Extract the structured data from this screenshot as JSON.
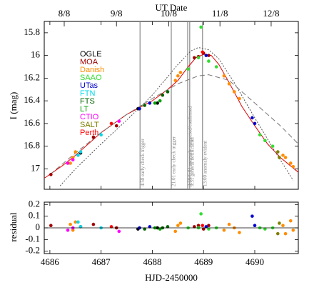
{
  "chart_data": [
    {
      "type": "scatter",
      "ylabel": "I (mag)",
      "x2label": "UT Date",
      "xlim": [
        4685.89,
        4690.85
      ],
      "ylim": [
        15.7,
        17.18
      ],
      "y_inverted": true,
      "xticks": [
        4686,
        4687,
        4688,
        4689,
        4690
      ],
      "yticks": [
        15.8,
        16,
        16.2,
        16.4,
        16.6,
        16.8,
        17
      ],
      "x2ticks": [
        {
          "value": 4686.28,
          "label": "8/8"
        },
        {
          "value": 4687.3,
          "label": "9/8"
        },
        {
          "value": 4688.32,
          "label": "10/8"
        },
        {
          "value": 4689.32,
          "label": "11/8"
        },
        {
          "value": 4690.32,
          "label": "12/8"
        }
      ],
      "vlines": [
        {
          "x": 4687.76,
          "label": "4:58 early check trigger"
        },
        {
          "x": 4688.37,
          "label": "21:01 early check trigger"
        },
        {
          "x": 4688.69,
          "label": "3:59/6:01 anomaly suspected/confirmed"
        },
        {
          "x": 4688.73,
          "label": "9:31 general notification"
        },
        {
          "x": 4688.98,
          "label": "13:00 anomaly evident"
        }
      ],
      "lines": [
        {
          "color": "#e00000",
          "dash": "none",
          "x": [
            4685.9,
            4686.25,
            4686.5,
            4687,
            4687.5,
            4688,
            4688.3,
            4688.5,
            4688.7,
            4688.85,
            4689,
            4689.15,
            4689.3,
            4689.5,
            4689.75,
            4690,
            4690.25,
            4690.5,
            4690.85
          ],
          "values": [
            17.08,
            16.97,
            16.88,
            16.68,
            16.52,
            16.4,
            16.3,
            16.22,
            16.1,
            16.02,
            15.99,
            16.0,
            16.08,
            16.24,
            16.45,
            16.62,
            16.78,
            16.9,
            17.03
          ]
        },
        {
          "color": "#555555",
          "dash": "2 2",
          "x": [
            4686.2,
            4686.5,
            4687,
            4687.5,
            4688,
            4688.5,
            4688.75,
            4688.9,
            4689.1,
            4689.3,
            4689.6,
            4690,
            4690.4,
            4690.75
          ],
          "values": [
            17.15,
            17.0,
            16.78,
            16.57,
            16.35,
            16.08,
            15.96,
            15.93,
            15.95,
            16.03,
            16.24,
            16.55,
            16.85,
            17.1
          ]
        },
        {
          "color": "#777777",
          "dash": "7 4",
          "x": [
            4686,
            4686.5,
            4687,
            4687.5,
            4688,
            4688.5,
            4688.9,
            4689.1,
            4689.5,
            4690,
            4690.5,
            4690.85
          ],
          "values": [
            17.05,
            16.86,
            16.68,
            16.52,
            16.38,
            16.25,
            16.18,
            16.17,
            16.22,
            16.42,
            16.62,
            16.78
          ]
        }
      ],
      "series": [
        {
          "name": "OGLE",
          "color": "#000000",
          "x": [
            4686.6,
            4687.72,
            4688.1
          ],
          "values": [
            16.86,
            16.47,
            16.42
          ]
        },
        {
          "name": "MOA",
          "color": "#a00000",
          "x": [
            4686.02,
            4686.85,
            4687.3,
            4688.82,
            4688.9,
            4689.0,
            4689.1
          ],
          "values": [
            17.05,
            16.72,
            16.62,
            16.02,
            16.01,
            15.98,
            16.0
          ]
        },
        {
          "name": "Danish",
          "color": "#ff8c00",
          "x": [
            4686.4,
            4686.45,
            4686.5,
            4688.45,
            4688.5,
            4688.55,
            4689.4,
            4689.5,
            4689.6,
            4689.7,
            4690.55,
            4690.6,
            4690.7,
            4690.75
          ],
          "values": [
            16.95,
            16.9,
            16.85,
            16.22,
            16.18,
            16.15,
            16.18,
            16.25,
            16.32,
            16.38,
            16.88,
            16.9,
            16.95,
            16.98
          ]
        },
        {
          "name": "SAAO",
          "color": "#33dd33",
          "x": [
            4688.7,
            4688.9,
            4688.95,
            4689.1,
            4689.25,
            4690.1,
            4690.2,
            4690.35
          ],
          "values": [
            16.12,
            16.02,
            15.75,
            16.05,
            16.1,
            16.7,
            16.75,
            16.8
          ]
        },
        {
          "name": "UTas",
          "color": "#0000cd",
          "x": [
            4687.75,
            4687.95,
            4689.05,
            4689.95,
            4690.0
          ],
          "values": [
            16.47,
            16.42,
            16.0,
            16.55,
            16.6
          ]
        },
        {
          "name": "FTN",
          "color": "#00d8e8",
          "x": [
            4686.55,
            4686.6,
            4687.0
          ],
          "values": [
            16.88,
            16.85,
            16.7
          ]
        },
        {
          "name": "FTS",
          "color": "#006400",
          "x": [
            4687.85,
            4688.2,
            4688.3
          ],
          "values": [
            16.44,
            16.35,
            16.32
          ]
        },
        {
          "name": "LT",
          "color": "#00a000",
          "x": [
            4688.05,
            4688.15
          ],
          "values": [
            16.42,
            16.4
          ]
        },
        {
          "name": "CTIO",
          "color": "#ff00ff",
          "x": [
            4686.35,
            4686.45,
            4687.35
          ],
          "values": [
            16.95,
            16.92,
            16.58
          ]
        },
        {
          "name": "SALT",
          "color": "#808000",
          "x": [
            4690.45,
            4690.48
          ],
          "values": [
            16.85,
            16.9
          ]
        },
        {
          "name": "Perth",
          "color": "#ff0000",
          "x": [
            4687.2,
            4688.98
          ],
          "values": [
            16.6,
            15.97
          ]
        }
      ]
    },
    {
      "type": "scatter",
      "ylabel": "residual",
      "xlabel": "HJD-2450000",
      "xlim": [
        4685.89,
        4690.85
      ],
      "ylim": [
        -0.22,
        0.22
      ],
      "xticks": [
        4686,
        4687,
        4688,
        4689,
        4690
      ],
      "yticks": [
        0.2,
        0.1,
        0,
        -0.1,
        -0.2
      ],
      "zero_line": true,
      "series": [
        {
          "color": "#000000",
          "x": [
            4686.6,
            4687.72,
            4688.1
          ],
          "values": [
            0.01,
            -0.01,
            0.0
          ]
        },
        {
          "color": "#a00000",
          "x": [
            4686.02,
            4686.85,
            4687.3,
            4688.82,
            4688.9,
            4689.0,
            4689.1
          ],
          "values": [
            0.02,
            0.03,
            0.0,
            0.01,
            0.02,
            -0.01,
            0.02
          ]
        },
        {
          "color": "#ff8c00",
          "x": [
            4686.4,
            4686.45,
            4686.5,
            4688.45,
            4688.5,
            4688.55,
            4689.4,
            4689.5,
            4689.6,
            4689.7,
            4690.55,
            4690.6,
            4690.7,
            4690.75
          ],
          "values": [
            0.03,
            -0.02,
            0.05,
            -0.03,
            0.02,
            0.04,
            -0.02,
            0.03,
            0.0,
            -0.04,
            0.02,
            -0.05,
            0.06,
            -0.02
          ]
        },
        {
          "color": "#33dd33",
          "x": [
            4688.7,
            4688.9,
            4688.95,
            4689.1,
            4689.25,
            4690.1,
            4690.2,
            4690.35
          ],
          "values": [
            0.0,
            0.0,
            0.12,
            -0.01,
            0.0,
            0.0,
            -0.01,
            0.0
          ]
        },
        {
          "color": "#0000cd",
          "x": [
            4687.75,
            4687.95,
            4689.05,
            4689.95,
            4690.0
          ],
          "values": [
            0.0,
            0.01,
            0.01,
            0.1,
            0.02
          ]
        },
        {
          "color": "#00d8e8",
          "x": [
            4686.55,
            4686.6,
            4687.0
          ],
          "values": [
            0.05,
            0.01,
            0.0
          ]
        },
        {
          "color": "#006400",
          "x": [
            4687.85,
            4688.2,
            4688.3
          ],
          "values": [
            -0.01,
            0.0,
            0.01
          ]
        },
        {
          "color": "#00a000",
          "x": [
            4688.05,
            4688.15
          ],
          "values": [
            0.0,
            -0.01
          ]
        },
        {
          "color": "#ff00ff",
          "x": [
            4686.35,
            4686.45,
            4687.35
          ],
          "values": [
            -0.02,
            0.0,
            -0.03
          ]
        },
        {
          "color": "#808000",
          "x": [
            4690.45,
            4690.48
          ],
          "values": [
            -0.05,
            0.04
          ]
        },
        {
          "color": "#ff0000",
          "x": [
            4687.2,
            4688.98
          ],
          "values": [
            0.01,
            0.02
          ]
        }
      ]
    }
  ]
}
